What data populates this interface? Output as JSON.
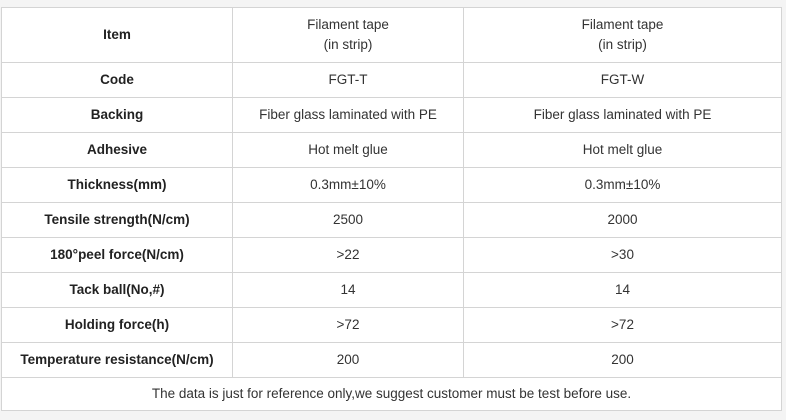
{
  "header": {
    "label": "Item",
    "col1": [
      "Filament tape",
      "(in strip)"
    ],
    "col2": [
      "Filament tape",
      "(in strip)"
    ]
  },
  "rows": [
    {
      "label": "Code",
      "v1": "FGT-T",
      "v2": "FGT-W"
    },
    {
      "label": "Backing",
      "v1": "Fiber glass laminated with PE",
      "v2": "Fiber glass laminated with PE"
    },
    {
      "label": "Adhesive",
      "v1": "Hot melt glue",
      "v2": "Hot melt glue"
    },
    {
      "label": "Thickness(mm)",
      "v1": "0.3mm±10%",
      "v2": "0.3mm±10%"
    },
    {
      "label": "Tensile strength(N/cm)",
      "v1": "2500",
      "v2": "2000"
    },
    {
      "label": "180°peel force(N/cm)",
      "v1": ">22",
      "v2": ">30"
    },
    {
      "label": "Tack ball(No,#)",
      "v1": "14",
      "v2": "14"
    },
    {
      "label": "Holding force(h)",
      "v1": ">72",
      "v2": ">72"
    },
    {
      "label": "Temperature resistance(N/cm)",
      "v1": "200",
      "v2": "200"
    }
  ],
  "note": "The data is just for reference only,we suggest customer must be test before use."
}
